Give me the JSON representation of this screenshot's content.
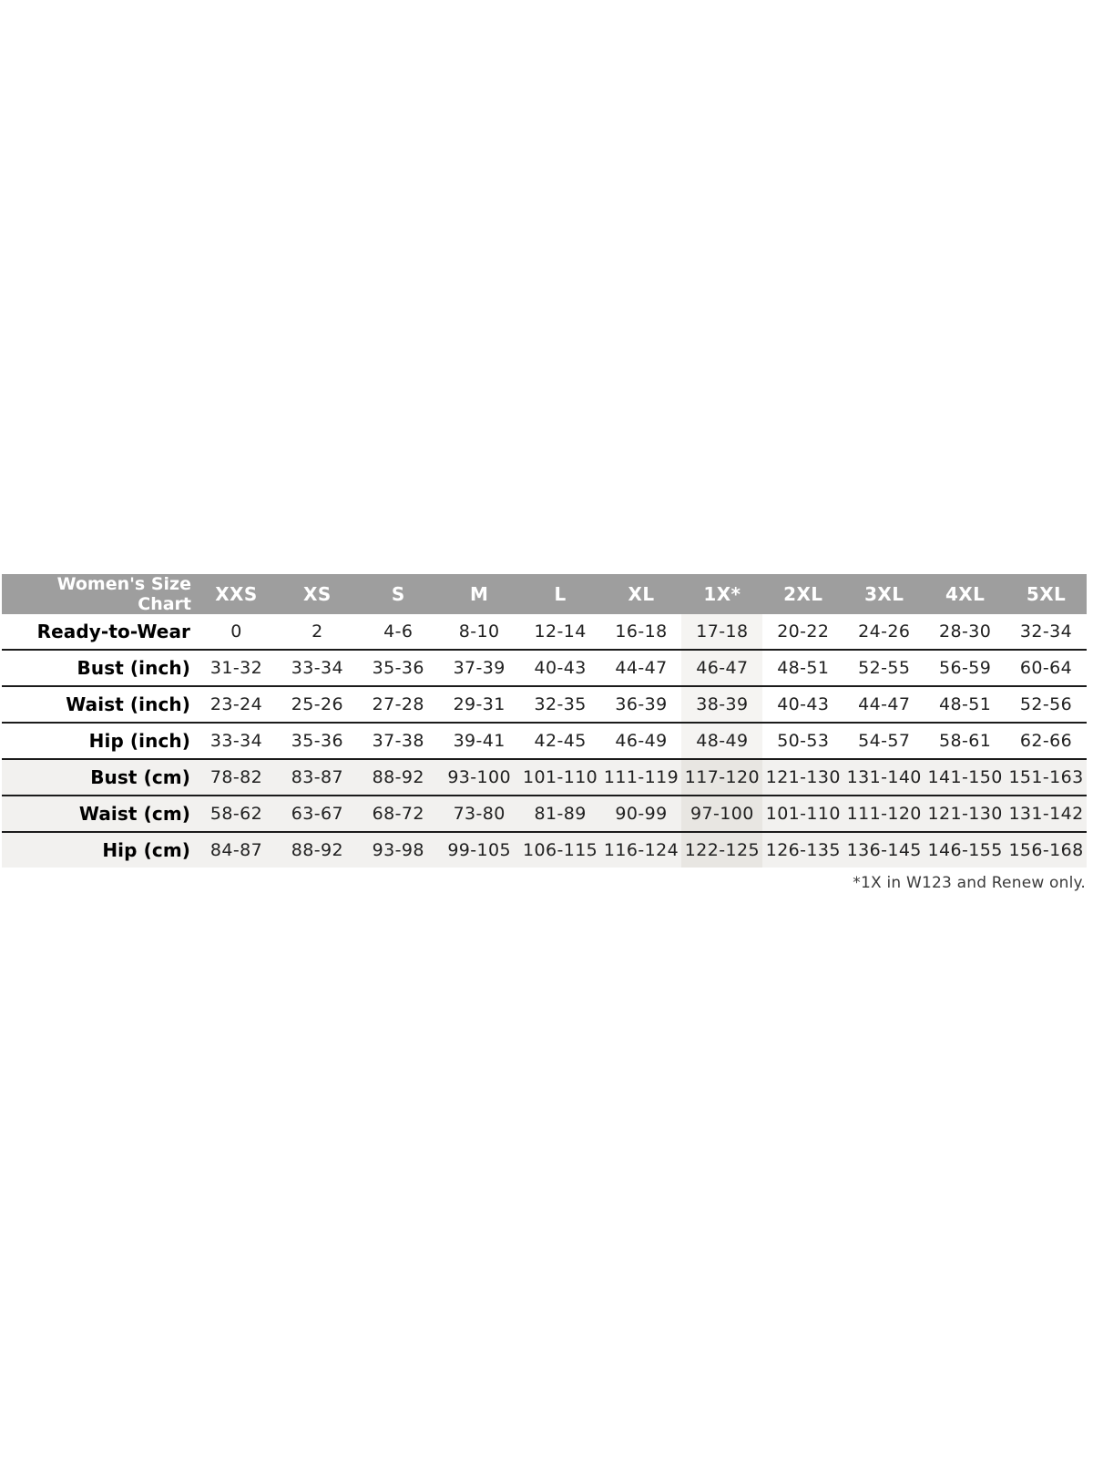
{
  "chart_data": {
    "type": "table",
    "title": "Women's Size Chart",
    "columns": [
      "XXS",
      "XS",
      "S",
      "M",
      "L",
      "XL",
      "1X*",
      "2XL",
      "3XL",
      "4XL",
      "5XL"
    ],
    "highlight_column": "1X*",
    "highlight_column_index": 6,
    "rows": [
      {
        "label": "Ready-to-Wear",
        "section": "size",
        "values": [
          "0",
          "2",
          "4-6",
          "8-10",
          "12-14",
          "16-18",
          "17-18",
          "20-22",
          "24-26",
          "28-30",
          "32-34"
        ]
      },
      {
        "label": "Bust (inch)",
        "section": "inch",
        "values": [
          "31-32",
          "33-34",
          "35-36",
          "37-39",
          "40-43",
          "44-47",
          "46-47",
          "48-51",
          "52-55",
          "56-59",
          "60-64"
        ]
      },
      {
        "label": "Waist (inch)",
        "section": "inch",
        "values": [
          "23-24",
          "25-26",
          "27-28",
          "29-31",
          "32-35",
          "36-39",
          "38-39",
          "40-43",
          "44-47",
          "48-51",
          "52-56"
        ]
      },
      {
        "label": "Hip (inch)",
        "section": "inch",
        "values": [
          "33-34",
          "35-36",
          "37-38",
          "39-41",
          "42-45",
          "46-49",
          "48-49",
          "50-53",
          "54-57",
          "58-61",
          "62-66"
        ]
      },
      {
        "label": "Bust (cm)",
        "section": "cm",
        "values": [
          "78-82",
          "83-87",
          "88-92",
          "93-100",
          "101-110",
          "111-119",
          "117-120",
          "121-130",
          "131-140",
          "141-150",
          "151-163"
        ]
      },
      {
        "label": "Waist (cm)",
        "section": "cm",
        "values": [
          "58-62",
          "63-67",
          "68-72",
          "73-80",
          "81-89",
          "90-99",
          "97-100",
          "101-110",
          "111-120",
          "121-130",
          "131-142"
        ]
      },
      {
        "label": "Hip (cm)",
        "section": "cm",
        "values": [
          "84-87",
          "88-92",
          "93-98",
          "99-105",
          "106-115",
          "116-124",
          "122-125",
          "126-135",
          "136-145",
          "146-155",
          "156-168"
        ]
      }
    ],
    "footnote": "*1X in W123 and Renew only.",
    "layout_hints": {
      "header_position": "top",
      "label_column_position": "left",
      "grid": "horizontal-lines-only",
      "alt_shaded_sections": [
        "cm"
      ]
    }
  },
  "colors": {
    "header_bg": "#9e9e9e",
    "header_text": "#ffffff",
    "alt_row_bg": "#f2f1ef",
    "highlight_col_bg": "#f5f4f2",
    "highlight_col_on_alt_bg": "#e8e6e2",
    "row_border": "#1b1b1b",
    "data_text": "#212121",
    "footnote_text": "#3a3a3a"
  }
}
